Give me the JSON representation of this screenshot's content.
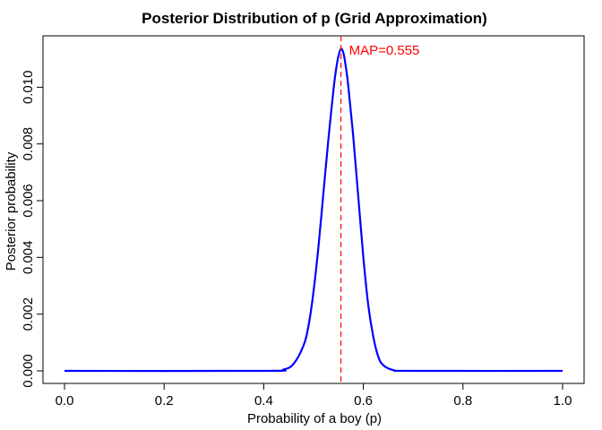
{
  "chart_data": {
    "type": "line",
    "title": "Posterior Distribution of p (Grid Approximation)",
    "xlabel": "Probability of a boy (p)",
    "ylabel": "Posterior probability",
    "xlim": [
      0,
      1
    ],
    "ylim": [
      0,
      0.0114
    ],
    "x_ticks": [
      0.0,
      0.2,
      0.4,
      0.6,
      0.8,
      1.0
    ],
    "x_tick_labels": [
      "0.0",
      "0.2",
      "0.4",
      "0.6",
      "0.8",
      "1.0"
    ],
    "y_ticks": [
      0.0,
      0.002,
      0.004,
      0.006,
      0.008,
      0.01
    ],
    "y_tick_labels": [
      "0.000",
      "0.002",
      "0.004",
      "0.006",
      "0.008",
      "0.010"
    ],
    "grid": false,
    "series": [
      {
        "color": "#0000ff",
        "x": [
          0.0,
          0.4,
          0.44,
          0.46,
          0.48,
          0.49,
          0.5,
          0.51,
          0.52,
          0.53,
          0.54,
          0.545,
          0.55,
          0.555,
          0.56,
          0.565,
          0.57,
          0.58,
          0.59,
          0.6,
          0.61,
          0.62,
          0.63,
          0.64,
          0.66,
          0.7,
          1.0
        ],
        "y": [
          0.0,
          0.0,
          5e-05,
          0.00025,
          0.0009,
          0.0016,
          0.0028,
          0.0044,
          0.0063,
          0.0082,
          0.0099,
          0.0106,
          0.0111,
          0.01135,
          0.0112,
          0.0107,
          0.01,
          0.0082,
          0.0061,
          0.004,
          0.0023,
          0.0012,
          0.0005,
          0.0002,
          3e-05,
          0.0,
          0.0
        ]
      }
    ],
    "annotations": [
      {
        "type": "vline",
        "x": 0.555,
        "color": "#ff0000",
        "style": "dashed",
        "label": "MAP=0.555",
        "label_y": 0.0113
      }
    ]
  }
}
